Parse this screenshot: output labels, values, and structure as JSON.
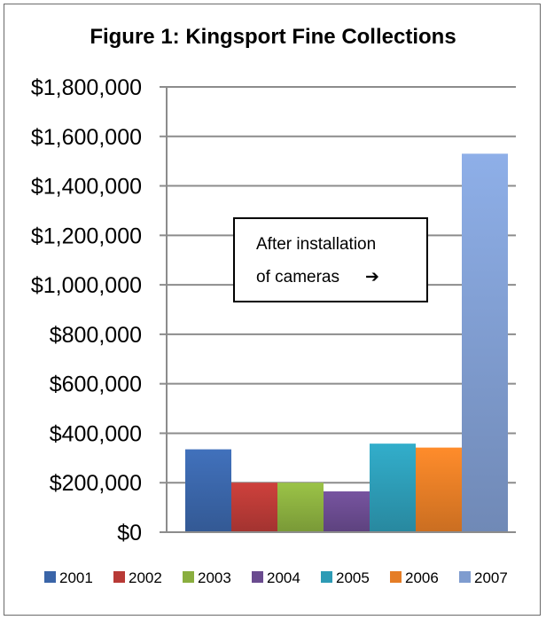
{
  "chart_data": {
    "type": "bar",
    "title": "Figure 1: Kingsport Fine Collections",
    "xlabel": "",
    "ylabel": "",
    "ylim": [
      0,
      1800000
    ],
    "yticks": [
      0,
      200000,
      400000,
      600000,
      800000,
      1000000,
      1200000,
      1400000,
      1600000,
      1800000
    ],
    "ytick_labels": [
      "$0",
      "$200,000",
      "$400,000",
      "$600,000",
      "$800,000",
      "$1,000,000",
      "$1,200,000",
      "$1,400,000",
      "$1,600,000",
      "$1,800,000"
    ],
    "grid": true,
    "legend_position": "bottom",
    "series": [
      {
        "name": "2001",
        "value": 335000,
        "color": "#3a65a8"
      },
      {
        "name": "2002",
        "value": 200000,
        "color": "#b83a36"
      },
      {
        "name": "2003",
        "value": 200000,
        "color": "#8aae3f"
      },
      {
        "name": "2004",
        "value": 165000,
        "color": "#6a4b8f"
      },
      {
        "name": "2005",
        "value": 358000,
        "color": "#2d9bb5"
      },
      {
        "name": "2006",
        "value": 342000,
        "color": "#e57d26"
      },
      {
        "name": "2007",
        "value": 1530000,
        "color": "#7f9ccf"
      }
    ],
    "annotation": {
      "line1": "After installation",
      "line2": "of cameras",
      "arrow": "➔"
    }
  }
}
